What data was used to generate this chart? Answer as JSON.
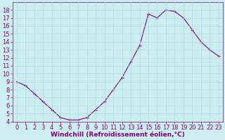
{
  "x": [
    0,
    1,
    2,
    3,
    4,
    5,
    6,
    7,
    8,
    9,
    10,
    11,
    12,
    13,
    14,
    15,
    16,
    17,
    18,
    19,
    20,
    21,
    22,
    23
  ],
  "y": [
    9.0,
    8.5,
    7.5,
    6.5,
    5.5,
    4.5,
    4.2,
    4.2,
    4.5,
    5.5,
    6.5,
    8.0,
    9.5,
    11.5,
    13.5,
    17.5,
    17.0,
    18.0,
    17.8,
    17.0,
    15.5,
    14.0,
    13.0,
    12.2
  ],
  "line_color": "#800080",
  "marker": "+",
  "bg_color": "#cceef0",
  "grid_color": "#aadddd",
  "xlabel": "Windchill (Refroidissement éolien,°C)",
  "xlabel_color": "#800080",
  "tick_color": "#800080",
  "ylim": [
    4,
    19
  ],
  "xlim": [
    -0.5,
    23.5
  ],
  "yticks": [
    4,
    5,
    6,
    7,
    8,
    9,
    10,
    11,
    12,
    13,
    14,
    15,
    16,
    17,
    18
  ],
  "xticks": [
    0,
    1,
    2,
    3,
    4,
    5,
    6,
    7,
    8,
    9,
    10,
    11,
    12,
    13,
    14,
    15,
    16,
    17,
    18,
    19,
    20,
    21,
    22,
    23
  ],
  "font_size": 6.0,
  "label_font_size": 6.5,
  "marker_size": 3.5,
  "line_width": 0.8
}
